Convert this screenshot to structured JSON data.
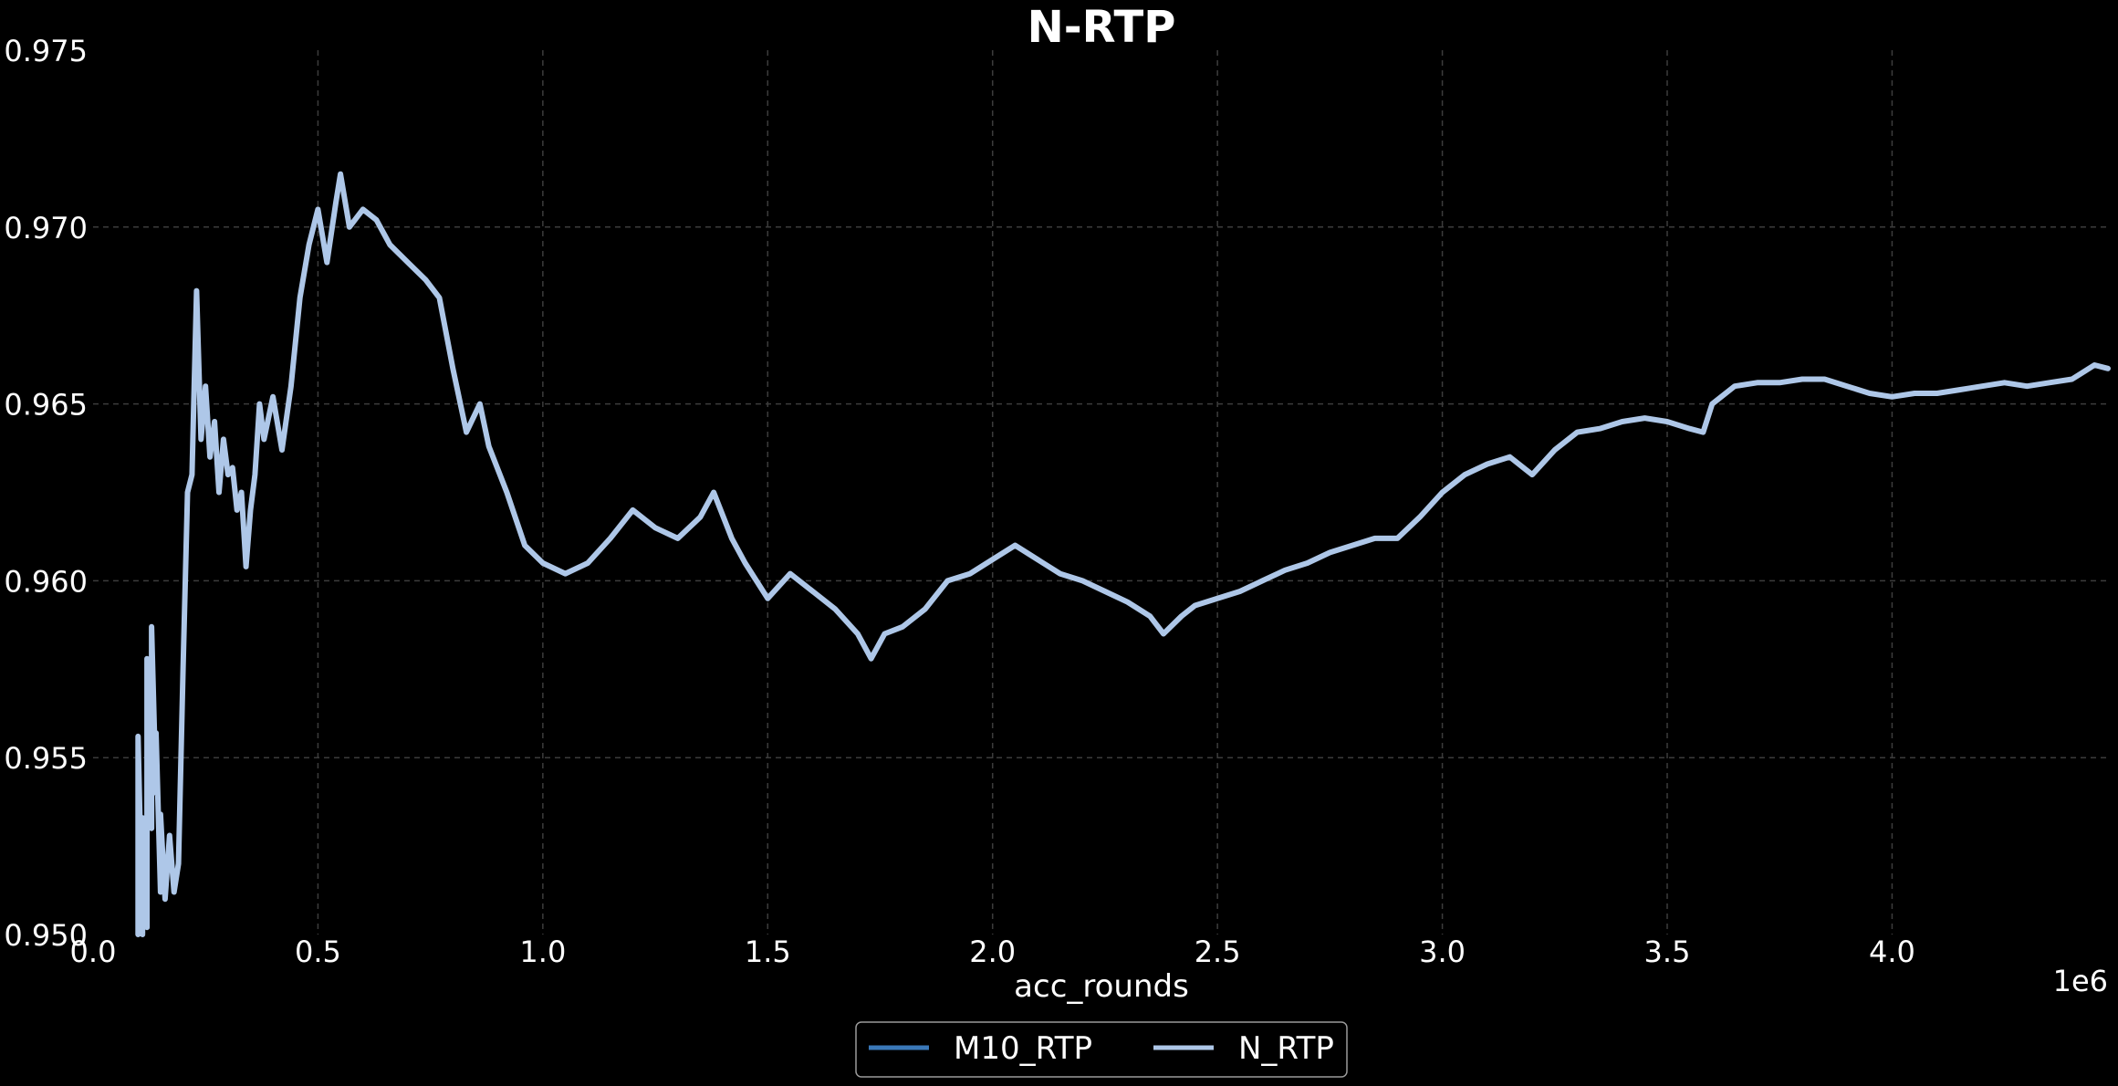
{
  "chart_data": {
    "type": "line",
    "title": "N-RTP",
    "xlabel": "acc_rounds",
    "ylabel": "",
    "x_offset_label": "1e6",
    "xlim": [
      0,
      4.48
    ],
    "ylim": [
      0.95,
      0.975
    ],
    "x_ticks": [
      "0.0",
      "0.5",
      "1.0",
      "1.5",
      "2.0",
      "2.5",
      "3.0",
      "3.5",
      "4.0"
    ],
    "x_tick_values": [
      0,
      0.5,
      1.0,
      1.5,
      2.0,
      2.5,
      3.0,
      3.5,
      4.0
    ],
    "y_ticks": [
      "0.950",
      "0.955",
      "0.960",
      "0.965",
      "0.970",
      "0.975"
    ],
    "y_tick_values": [
      0.95,
      0.955,
      0.96,
      0.965,
      0.97,
      0.975
    ],
    "grid": true,
    "legend_position": "bottom-center",
    "series": [
      {
        "name": "M10_RTP",
        "color": "#3a78b8",
        "x": [],
        "y": []
      },
      {
        "name": "N_RTP",
        "color": "#aec7e8",
        "x": [
          0.1,
          0.1,
          0.11,
          0.11,
          0.12,
          0.12,
          0.13,
          0.13,
          0.14,
          0.14,
          0.15,
          0.15,
          0.16,
          0.17,
          0.18,
          0.19,
          0.2,
          0.21,
          0.22,
          0.23,
          0.24,
          0.25,
          0.26,
          0.27,
          0.28,
          0.29,
          0.3,
          0.31,
          0.32,
          0.33,
          0.34,
          0.35,
          0.36,
          0.37,
          0.38,
          0.4,
          0.42,
          0.44,
          0.46,
          0.48,
          0.5,
          0.52,
          0.54,
          0.55,
          0.57,
          0.6,
          0.63,
          0.66,
          0.7,
          0.74,
          0.77,
          0.8,
          0.83,
          0.86,
          0.88,
          0.92,
          0.96,
          1.0,
          1.05,
          1.1,
          1.15,
          1.2,
          1.25,
          1.3,
          1.35,
          1.38,
          1.42,
          1.45,
          1.5,
          1.55,
          1.6,
          1.65,
          1.7,
          1.73,
          1.76,
          1.8,
          1.85,
          1.9,
          1.95,
          2.0,
          2.05,
          2.1,
          2.15,
          2.2,
          2.25,
          2.3,
          2.35,
          2.38,
          2.42,
          2.45,
          2.5,
          2.55,
          2.6,
          2.65,
          2.7,
          2.75,
          2.8,
          2.85,
          2.9,
          2.95,
          3.0,
          3.05,
          3.1,
          3.15,
          3.2,
          3.25,
          3.3,
          3.35,
          3.4,
          3.45,
          3.5,
          3.55,
          3.58,
          3.6,
          3.65,
          3.7,
          3.75,
          3.8,
          3.85,
          3.9,
          3.95,
          4.0,
          4.05,
          4.1,
          4.15,
          4.2,
          4.25,
          4.3,
          4.35,
          4.4,
          4.45,
          4.48
        ],
        "y": [
          0.95,
          0.9556,
          0.95,
          0.9533,
          0.9502,
          0.9578,
          0.953,
          0.9587,
          0.954,
          0.9557,
          0.9512,
          0.9534,
          0.951,
          0.9528,
          0.9512,
          0.952,
          0.9575,
          0.9625,
          0.963,
          0.9682,
          0.964,
          0.9655,
          0.9635,
          0.9645,
          0.9625,
          0.964,
          0.963,
          0.9632,
          0.962,
          0.9625,
          0.9604,
          0.962,
          0.963,
          0.965,
          0.964,
          0.9652,
          0.9637,
          0.9655,
          0.968,
          0.9695,
          0.9705,
          0.969,
          0.9707,
          0.9715,
          0.97,
          0.9705,
          0.9702,
          0.9695,
          0.969,
          0.9685,
          0.968,
          0.966,
          0.9642,
          0.965,
          0.9638,
          0.9625,
          0.961,
          0.9605,
          0.9602,
          0.9605,
          0.9612,
          0.962,
          0.9615,
          0.9612,
          0.9618,
          0.9625,
          0.9612,
          0.9605,
          0.9595,
          0.9602,
          0.9597,
          0.9592,
          0.9585,
          0.9578,
          0.9585,
          0.9587,
          0.9592,
          0.96,
          0.9602,
          0.9606,
          0.961,
          0.9606,
          0.9602,
          0.96,
          0.9597,
          0.9594,
          0.959,
          0.9585,
          0.959,
          0.9593,
          0.9595,
          0.9597,
          0.96,
          0.9603,
          0.9605,
          0.9608,
          0.961,
          0.9612,
          0.9612,
          0.9618,
          0.9625,
          0.963,
          0.9633,
          0.9635,
          0.963,
          0.9637,
          0.9642,
          0.9643,
          0.9645,
          0.9646,
          0.9645,
          0.9643,
          0.9642,
          0.965,
          0.9655,
          0.9656,
          0.9656,
          0.9657,
          0.9657,
          0.9655,
          0.9653,
          0.9652,
          0.9653,
          0.9653,
          0.9654,
          0.9655,
          0.9656,
          0.9655,
          0.9656,
          0.9657,
          0.9661,
          0.966
        ]
      }
    ]
  }
}
